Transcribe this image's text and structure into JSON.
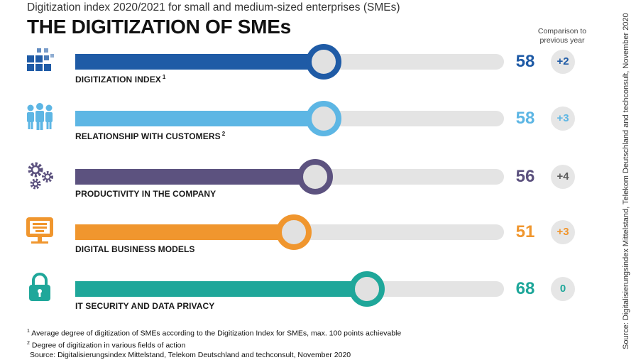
{
  "header": {
    "subtitle": "Digitization index 2020/2021 for small and medium-sized enterprises (SMEs)",
    "title": "THE DIGITIZATION OF SMEs",
    "comparison_heading": "Comparison to previous year"
  },
  "source_side": "Source: Digitalisierungsindex Mittelstand, Telekom Deutschland and techconsult, November 2020",
  "footnotes": {
    "note1_marker": "1",
    "note1": "Average degree of digitization of SMEs according to the Digitization Index for SMEs, max. 100 points achievable",
    "note2_marker": "2",
    "note2": "Degree of digitization in various fields of action",
    "source": "Source: Digitalisierungsindex Mittelstand, Telekom Deutschland and techconsult, November 2020"
  },
  "colors": {
    "index": "#1f5ba6",
    "customers": "#5db6e4",
    "productivity": "#5c527f",
    "business_models": "#f0962e",
    "security": "#1fa79a",
    "track": "#e4e4e4",
    "delta_dim": "#5c5c5c"
  },
  "chart_data": {
    "type": "bar",
    "orientation": "horizontal",
    "scale_max": 100,
    "categories": [
      "DIGITIZATION INDEX",
      "RELATIONSHIP WITH CUSTOMERS",
      "PRODUCTIVITY IN THE COMPANY",
      "DIGITAL BUSINESS MODELS",
      "IT SECURITY AND DATA PRIVACY"
    ],
    "footnote_markers": [
      "1",
      "2",
      "",
      "",
      ""
    ],
    "values": [
      58,
      58,
      56,
      51,
      68
    ],
    "comparison_to_previous_year": [
      "+2",
      "+3",
      "+4",
      "+3",
      "0"
    ],
    "icons": [
      "blocks-icon",
      "people-icon",
      "gears-icon",
      "monitor-icon",
      "padlock-icon"
    ],
    "series_colors": [
      "#1f5ba6",
      "#5db6e4",
      "#5c527f",
      "#f0962e",
      "#1fa79a"
    ]
  }
}
